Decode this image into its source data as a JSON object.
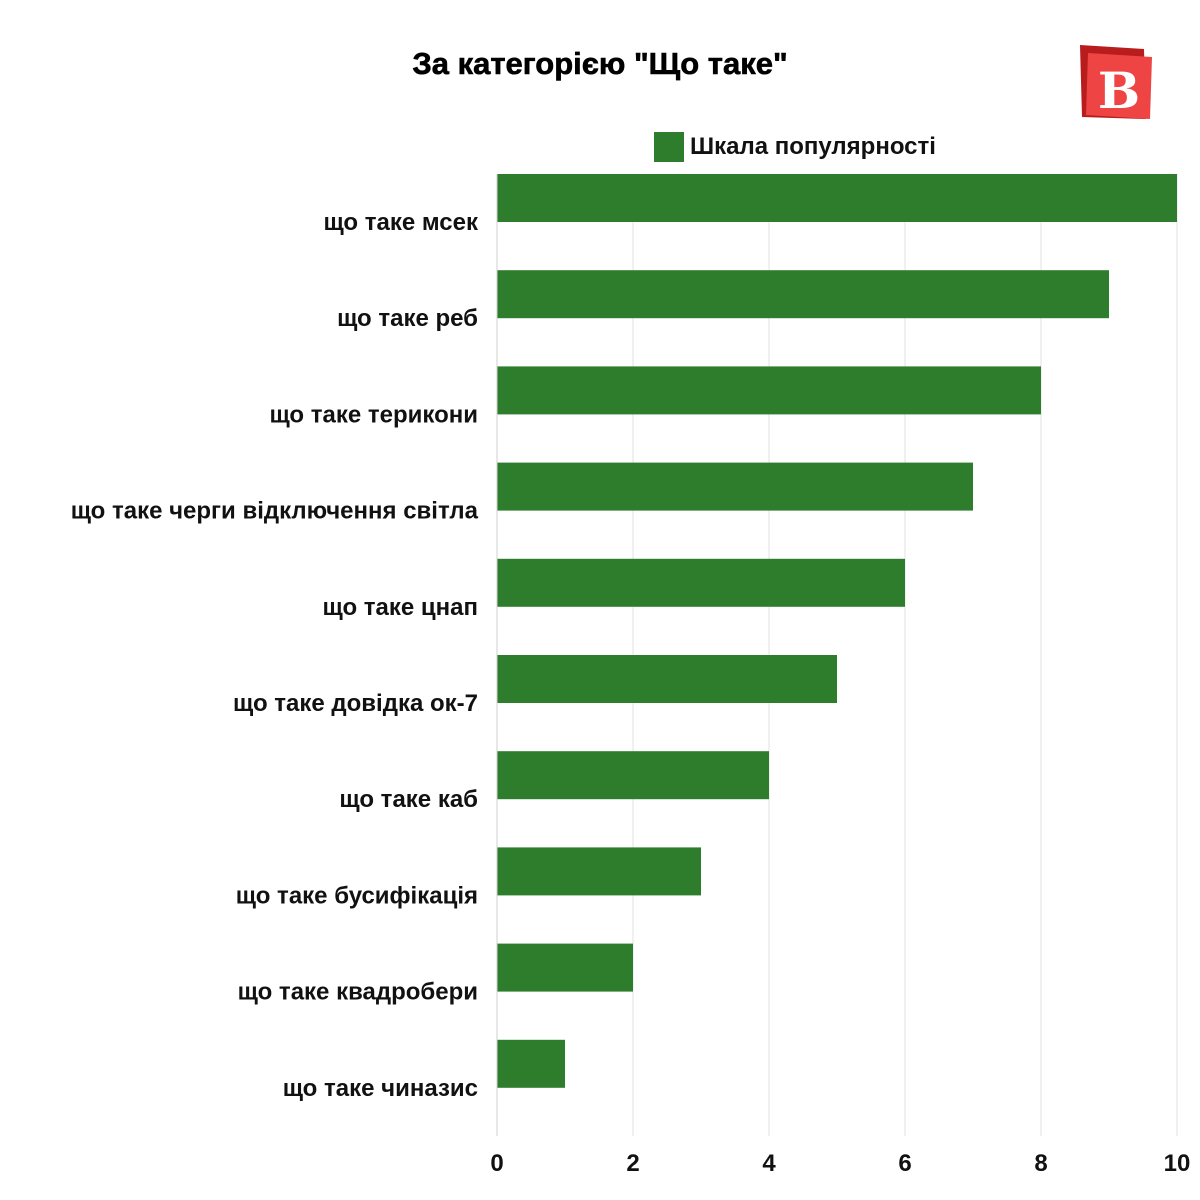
{
  "colors": {
    "bar": "#2d7d2d",
    "grid": "#e2e2e2",
    "logo_red": "#ef4444",
    "logo_dark": "#b91c1c"
  },
  "logo": {
    "letter": "B",
    "icon": "brand-logo-icon"
  },
  "chart_data": {
    "type": "bar",
    "orientation": "horizontal",
    "title": "За категорією \"Що таке\"",
    "categories": [
      "що таке мсек",
      "що таке реб",
      "що таке терикони",
      "що таке черги відключення світла",
      "що таке цнап",
      "що таке довідка ок-7",
      "що таке каб",
      "що таке бусифікація",
      "що таке квадробери",
      "що таке чиназис"
    ],
    "series": [
      {
        "name": "Шкала популярності",
        "values": [
          10,
          9,
          8,
          7,
          6,
          5,
          4,
          3,
          2,
          1
        ]
      }
    ],
    "xlim": [
      0,
      10
    ],
    "x_ticks": [
      "0",
      "2",
      "4",
      "6",
      "8",
      "10"
    ],
    "grid": "vertical",
    "legend": "top"
  }
}
